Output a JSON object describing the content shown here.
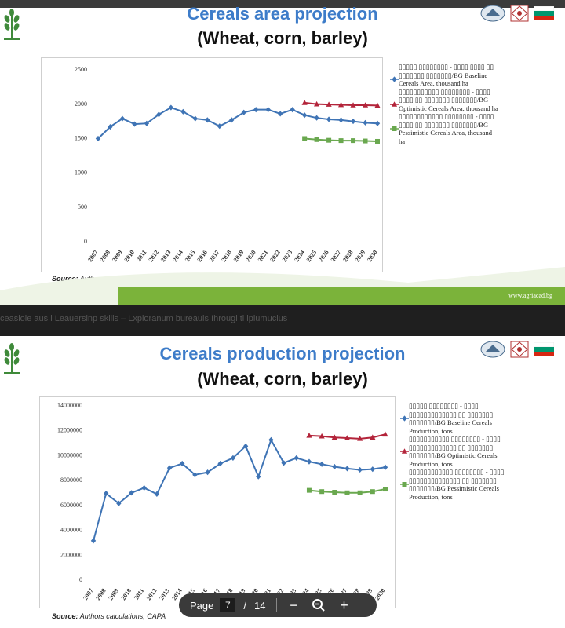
{
  "slide1": {
    "title": "Cereals area projection",
    "subtitle": "(Wheat, corn, barley)",
    "source_label": "Source:",
    "source_text": "Authors calculations, CAPA",
    "footer_url": "www.agriacad.bg"
  },
  "strip_text": "ceasiole aus i Leauersinp skilis – Lxpioranum bureauls Ihrougi ti ipiumucius",
  "slide2": {
    "title": "Cereals production projection",
    "subtitle": "(Wheat, corn, barley)",
    "source_label": "Source:",
    "source_text": "Authors calculations, CAPA"
  },
  "pager": {
    "label": "Page",
    "current": "7",
    "separator": "/",
    "total": "14",
    "zoom_out": "−",
    "zoom_in": "+"
  },
  "colors": {
    "baseline": "#3f74b5",
    "optimistic": "#b3243a",
    "pessimistic": "#6aa84f",
    "title_blue": "#3d7cc9",
    "footer_green": "#7bb33a"
  },
  "icons": [
    "wheat-logo-icon",
    "academy-logo-icon",
    "ornament-logo-icon",
    "bulgarian-flag-icon",
    "zoom-icon"
  ],
  "chart_data": [
    {
      "type": "line",
      "ylim": [
        0,
        2500
      ],
      "yticks": [
        "0",
        "500",
        "1000",
        "1500",
        "2000",
        "2500"
      ],
      "grid": false,
      "legend_position": "right",
      "x": [
        "2007",
        "2008",
        "2009",
        "2010",
        "2011",
        "2012",
        "2013",
        "2014",
        "2015",
        "2016",
        "2017",
        "2018",
        "2019",
        "2020",
        "2021",
        "2022",
        "2023",
        "2024",
        "2025",
        "2026",
        "2027",
        "2028",
        "2029",
        "2030"
      ],
      "series": [
        {
          "name": "▯▯▯▯▯ ▯▯▯▯▯▯▯▯ - ▯▯▯▯ ▯▯▯▯ ▯▯ ▯▯▯▯▯▯▯ ▯▯▯▯▯▯▯/BG Baseline Cereals Area, thousand ha",
          "color": "#3f74b5",
          "marker": "diamond",
          "values": [
            1490,
            1660,
            1780,
            1700,
            1710,
            1840,
            1940,
            1880,
            1780,
            1760,
            1670,
            1760,
            1870,
            1910,
            1910,
            1850,
            1910,
            1830,
            1790,
            1770,
            1760,
            1740,
            1720,
            1710
          ]
        },
        {
          "name": "▯▯▯▯▯▯▯▯▯▯▯ ▯▯▯▯▯▯▯▯ - ▯▯▯▯ ▯▯▯▯ ▯▯ ▯▯▯▯▯▯▯ ▯▯▯▯▯▯▯/BG Optimistic Cereals Area, thousand ha",
          "color": "#b3243a",
          "marker": "triangle",
          "values": [
            null,
            null,
            null,
            null,
            null,
            null,
            null,
            null,
            null,
            null,
            null,
            null,
            null,
            null,
            null,
            null,
            null,
            2010,
            1990,
            1985,
            1980,
            1975,
            1975,
            1970
          ]
        },
        {
          "name": "▯▯▯▯▯▯▯▯▯▯▯▯ ▯▯▯▯▯▯▯▯ - ▯▯▯▯ ▯▯▯▯ ▯▯ ▯▯▯▯▯▯▯ ▯▯▯▯▯▯▯/BG Pessimistic Cereals Area, thousand ha",
          "color": "#6aa84f",
          "marker": "square",
          "values": [
            null,
            null,
            null,
            null,
            null,
            null,
            null,
            null,
            null,
            null,
            null,
            null,
            null,
            null,
            null,
            null,
            null,
            1490,
            1475,
            1465,
            1460,
            1460,
            1455,
            1450
          ]
        }
      ]
    },
    {
      "type": "line",
      "ylim": [
        0,
        14000000
      ],
      "yticks": [
        "0",
        "2000000",
        "4000000",
        "6000000",
        "8000000",
        "10000000",
        "12000000",
        "14000000"
      ],
      "grid": false,
      "legend_position": "right",
      "x": [
        "2007",
        "2008",
        "2009",
        "2010",
        "2011",
        "2012",
        "2013",
        "2014",
        "2015",
        "2016",
        "2017",
        "2018",
        "2019",
        "2020",
        "2021",
        "2022",
        "2023",
        "2024",
        "2025",
        "2026",
        "2027",
        "2028",
        "2029",
        "2030"
      ],
      "series": [
        {
          "name": "▯▯▯▯▯ ▯▯▯▯▯▯▯▯ - ▯▯▯▯ ▯▯▯▯▯▯▯▯▯▯▯▯▯ ▯▯ ▯▯▯▯▯▯▯ ▯▯▯▯▯▯▯/BG Baseline Cereals Production, tons",
          "color": "#3f74b5",
          "marker": "diamond",
          "values": [
            3100000,
            6900000,
            6100000,
            6950000,
            7350000,
            6850000,
            8950000,
            9300000,
            8400000,
            8600000,
            9300000,
            9750000,
            10700000,
            8250000,
            11200000,
            9350000,
            9750000,
            9450000,
            9250000,
            9050000,
            8900000,
            8800000,
            8850000,
            9000000
          ]
        },
        {
          "name": "▯▯▯▯▯▯▯▯▯▯▯ ▯▯▯▯▯▯▯▯ - ▯▯▯▯ ▯▯▯▯▯▯▯▯▯▯▯▯▯ ▯▯ ▯▯▯▯▯▯▯ ▯▯▯▯▯▯▯/BG Optimistic Cereals Production, tons",
          "color": "#b3243a",
          "marker": "triangle",
          "values": [
            null,
            null,
            null,
            null,
            null,
            null,
            null,
            null,
            null,
            null,
            null,
            null,
            null,
            null,
            null,
            null,
            null,
            11550000,
            11500000,
            11400000,
            11350000,
            11300000,
            11400000,
            11650000
          ]
        },
        {
          "name": "▯▯▯▯▯▯▯▯▯▯▯▯ ▯▯▯▯▯▯▯▯ - ▯▯▯▯ ▯▯▯▯▯▯▯▯▯▯▯▯▯▯ ▯▯ ▯▯▯▯▯▯▯ ▯▯▯▯▯▯▯/BG Pessimistic Cereals Production, tons",
          "color": "#6aa84f",
          "marker": "square",
          "values": [
            null,
            null,
            null,
            null,
            null,
            null,
            null,
            null,
            null,
            null,
            null,
            null,
            null,
            null,
            null,
            null,
            null,
            7150000,
            7050000,
            7000000,
            6950000,
            6950000,
            7050000,
            7250000
          ]
        }
      ]
    }
  ]
}
